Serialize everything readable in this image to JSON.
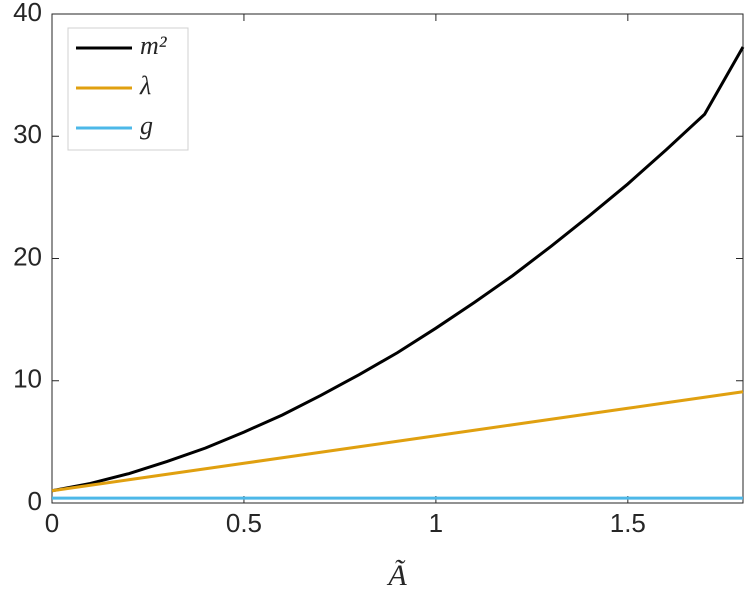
{
  "chart_data": {
    "type": "line",
    "x_label": "Ã",
    "x": [
      0,
      0.1,
      0.2,
      0.3,
      0.4,
      0.5,
      0.6,
      0.7,
      0.8,
      0.9,
      1.0,
      1.1,
      1.2,
      1.3,
      1.4,
      1.5,
      1.6,
      1.7,
      1.8
    ],
    "series": [
      {
        "name": "m²",
        "color": "#000000",
        "values": [
          1,
          1.6,
          2.4,
          3.4,
          4.5,
          5.8,
          7.2,
          8.8,
          10.5,
          12.3,
          14.3,
          16.4,
          18.6,
          21.0,
          23.5,
          26.1,
          28.9,
          31.8,
          37.3
        ]
      },
      {
        "name": "λ",
        "color": "#e0a010",
        "values": [
          1,
          1.45,
          1.9,
          2.35,
          2.8,
          3.25,
          3.7,
          4.15,
          4.6,
          5.05,
          5.5,
          5.95,
          6.4,
          6.85,
          7.3,
          7.75,
          8.2,
          8.65,
          9.1
        ]
      },
      {
        "name": "g",
        "color": "#4db8e8",
        "values": [
          0.4,
          0.4,
          0.4,
          0.4,
          0.4,
          0.4,
          0.4,
          0.4,
          0.4,
          0.4,
          0.4,
          0.4,
          0.4,
          0.4,
          0.4,
          0.4,
          0.4,
          0.4,
          0.4
        ]
      }
    ],
    "xlim": [
      0,
      1.8
    ],
    "ylim": [
      0,
      40
    ],
    "xticks": [
      0,
      0.5,
      1,
      1.5
    ],
    "yticks": [
      0,
      10,
      20,
      30,
      40
    ],
    "legend": "top-left"
  }
}
